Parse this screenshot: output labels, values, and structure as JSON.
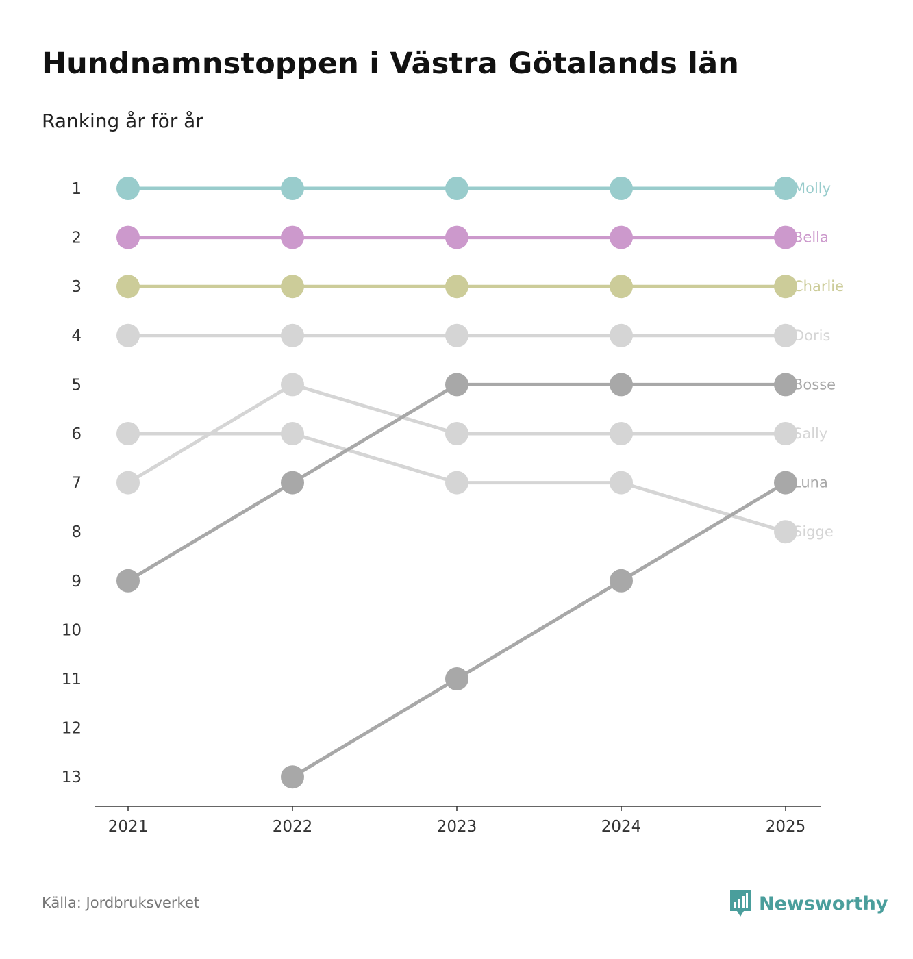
{
  "title": "Hundnamnstoppen i Västra Götalands län",
  "subtitle": "Ranking år för år",
  "source": "Källa: Jordbruksverket",
  "brand": {
    "name": "Newsworthy",
    "icon": "newsworthy-logo-icon",
    "color": "#4a9e9c"
  },
  "chart_data": {
    "type": "line",
    "title": "Hundnamnstoppen i Västra Götalands län",
    "subtitle": "Ranking år för år",
    "xlabel": "",
    "ylabel": "",
    "x": [
      "2021",
      "2022",
      "2023",
      "2024",
      "2025"
    ],
    "y_ticks": [
      "1",
      "2",
      "3",
      "4",
      "5",
      "6",
      "7",
      "8",
      "9",
      "10",
      "11",
      "12",
      "13"
    ],
    "ylim": [
      1,
      13
    ],
    "y_inverted": true,
    "grid": false,
    "series": [
      {
        "name": "Sigge",
        "values": [
          6,
          6,
          7,
          7,
          8
        ],
        "color": "#d5d5d5"
      },
      {
        "name": "Sally",
        "values": [
          7,
          5,
          6,
          6,
          6
        ],
        "color": "#d5d5d5"
      },
      {
        "name": "Doris",
        "values": [
          4,
          4,
          4,
          4,
          4
        ],
        "color": "#d5d5d5"
      },
      {
        "name": "Luna",
        "values": [
          null,
          13,
          11,
          9,
          7
        ],
        "color": "#a8a8a8"
      },
      {
        "name": "Bosse",
        "values": [
          9,
          7,
          5,
          5,
          5
        ],
        "color": "#a8a8a8"
      },
      {
        "name": "Charlie",
        "values": [
          3,
          3,
          3,
          3,
          3
        ],
        "color": "#cccc99"
      },
      {
        "name": "Bella",
        "values": [
          2,
          2,
          2,
          2,
          2
        ],
        "color": "#cc99cc"
      },
      {
        "name": "Molly",
        "values": [
          1,
          1,
          1,
          1,
          1
        ],
        "color": "#99cccc"
      }
    ]
  }
}
